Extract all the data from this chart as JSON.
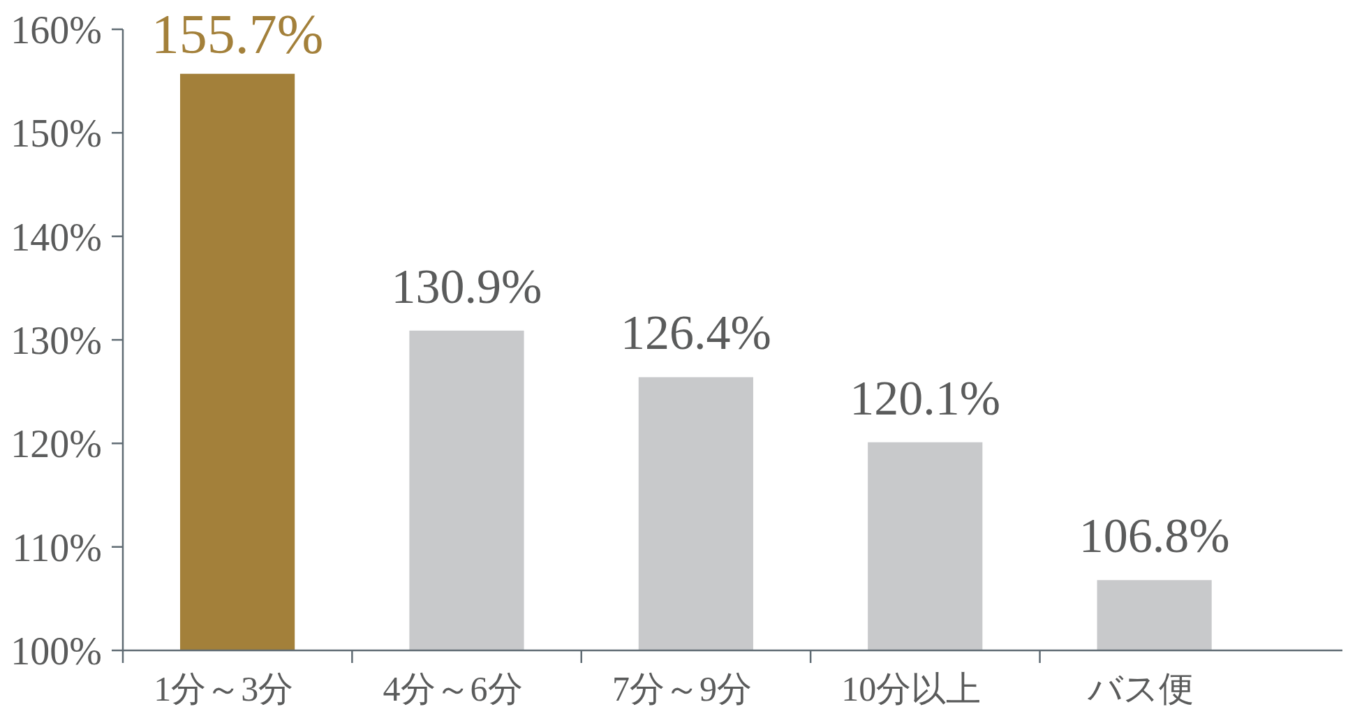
{
  "chart_data": {
    "type": "bar",
    "categories": [
      "1分～3分",
      "4分～6分",
      "7分～9分",
      "10分以上",
      "バス便"
    ],
    "values": [
      155.7,
      130.9,
      126.4,
      120.1,
      106.8
    ],
    "colors": [
      "#a3803a",
      "#c8c9cb",
      "#c8c9cb",
      "#c8c9cb",
      "#c8c9cb"
    ],
    "value_labels": [
      "155.7%",
      "130.9%",
      "126.4%",
      "120.1%",
      "106.8%"
    ],
    "ylim": [
      100,
      160
    ],
    "yticks": [
      {
        "value": 100,
        "label": "100%"
      },
      {
        "value": 110,
        "label": "110%"
      },
      {
        "value": 120,
        "label": "120%"
      },
      {
        "value": 130,
        "label": "130%"
      },
      {
        "value": 140,
        "label": "140%"
      },
      {
        "value": 150,
        "label": "150%"
      },
      {
        "value": 160,
        "label": "160%"
      }
    ]
  }
}
